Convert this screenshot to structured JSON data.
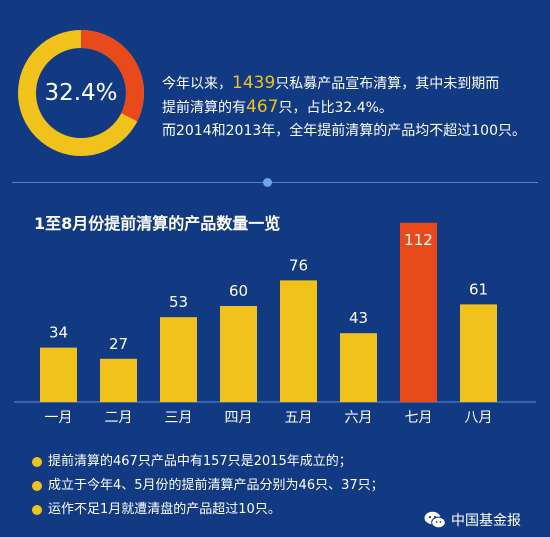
{
  "colors": {
    "background": "#123a82",
    "accent_yellow": "#f2c21c",
    "accent_red": "#e84a1c",
    "white": "#ffffff"
  },
  "summary": {
    "percent_label": "32.4%",
    "percent_value": 0.324,
    "line1_pre": "今年以来，",
    "line1_num": "1439",
    "line1_post": "只私募产品宣布清算，其中未到期而",
    "line2_pre": "提前清算的有",
    "line2_num": "467",
    "line2_post": "只，占比32.4%。",
    "line3": "而2014和2013年，全年提前清算的产品均不超过100只。"
  },
  "chart_data": {
    "type": "bar",
    "title": "1至8月份提前清算的产品数量一览",
    "categories": [
      "一月",
      "二月",
      "三月",
      "四月",
      "五月",
      "六月",
      "七月",
      "八月"
    ],
    "values": [
      34,
      27,
      53,
      60,
      76,
      43,
      112,
      61
    ],
    "highlight_index": 6,
    "bar_color": "#f2c21c",
    "highlight_color": "#e84a1c",
    "xlabel": "",
    "ylabel": "",
    "grid": false,
    "legend": "none"
  },
  "notes": [
    "提前清算的467只产品中有157只是2015年成立的；",
    "成立于今年4、5月份的提前清算产品分别为46只、37只；",
    "运作不足1月就遭清盘的产品超过10只。"
  ],
  "watermark": {
    "text": "中国基金报",
    "icon": "wechat-icon"
  }
}
